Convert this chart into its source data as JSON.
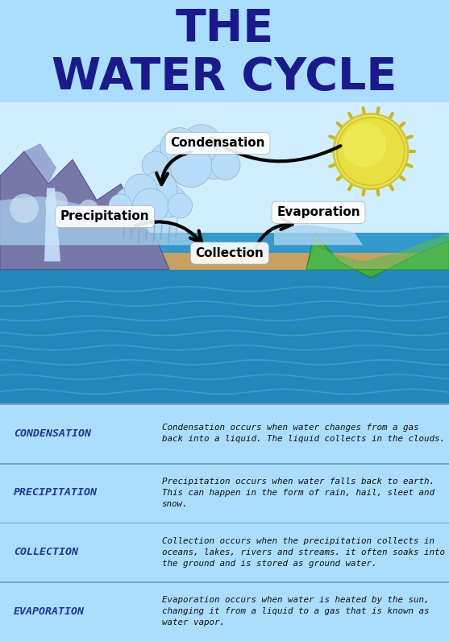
{
  "title_line1": "THE",
  "title_line2": "WATER CYCLE",
  "title_color": "#1a1a8c",
  "title_bg_color": "#aaddff",
  "diagram_bg_color": "#cceeff",
  "info_rows": [
    {
      "term": "CONDENSATION",
      "term_color": "#1a3a8c",
      "bg": "#b8d4ee",
      "description": "Condensation occurs when water changes from a gas\nback into a liquid. The liquid collects in the clouds."
    },
    {
      "term": "PRECIPITATION",
      "term_color": "#1a3a8c",
      "bg": "#c0d8f0",
      "description": "Precipitation occurs when water falls back to earth.\nThis can happen in the form of rain, hail, sleet and\nsnow."
    },
    {
      "term": "COLLECTION",
      "term_color": "#1a3a8c",
      "bg": "#4a9ecc",
      "description": "Collection occurs when the precipitation collects in\noceans, lakes, rivers and streams. it often soaks into\nthe ground and is stored as ground water."
    },
    {
      "term": "EVAPORATION",
      "term_color": "#1a3a8c",
      "bg": "#3a96c8",
      "description": "Evaporation occurs when water is heated by the sun,\nchanging it from a liquid to a gas that is known as\nwater vapor."
    }
  ],
  "water_color_deep": "#2288bb",
  "water_color_mid": "#3399cc",
  "water_color_light": "#55aadd",
  "land_color": "#c8a060",
  "land_shadow": "#b89050",
  "sky_color": "#d0eeff",
  "mountain_left_color": "#7777aa",
  "mountain_left_dark": "#555588",
  "mountain_right_color": "#44aa44",
  "mountain_right_dark": "#228822",
  "cloud_color": "#aaccee",
  "cloud_edge": "#88aacc",
  "sun_color": "#e8e040",
  "sun_outer": "#d4c830",
  "sun_spike": "#c8b828"
}
